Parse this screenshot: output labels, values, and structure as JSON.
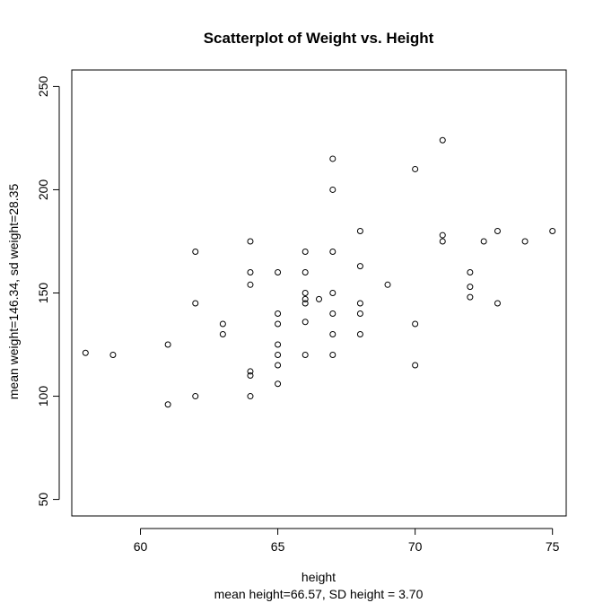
{
  "chart_data": {
    "type": "scatter",
    "title": "Scatterplot of Weight vs. Height",
    "xlabel": "height",
    "xsublabel": "mean height=66.57, SD height = 3.70",
    "ylabel": "mean weight=146.34, sd weight=28.35",
    "xlim": [
      57.5,
      75.5
    ],
    "ylim": [
      42,
      258
    ],
    "xticks": [
      "60",
      "65",
      "70",
      "75"
    ],
    "yticks": [
      "50",
      "100",
      "150",
      "200",
      "250"
    ],
    "x": [
      58,
      59,
      61,
      61,
      62,
      62,
      62,
      63,
      63,
      64,
      64,
      64,
      64,
      64,
      64,
      65,
      65,
      65,
      65,
      65,
      65,
      65,
      66,
      66,
      66,
      66,
      66,
      66,
      66,
      66.5,
      67,
      67,
      67,
      67,
      67,
      67,
      67,
      68,
      68,
      68,
      68,
      68,
      69,
      70,
      70,
      70,
      71,
      71,
      71,
      72,
      72,
      72,
      72.5,
      73,
      73,
      74,
      75
    ],
    "y": [
      121,
      120,
      125,
      96,
      170,
      145,
      100,
      135,
      130,
      175,
      160,
      154,
      112,
      110,
      100,
      160,
      140,
      135,
      125,
      115,
      106,
      120,
      170,
      160,
      150,
      145,
      136,
      120,
      147,
      147,
      200,
      170,
      150,
      140,
      130,
      120,
      215,
      180,
      145,
      140,
      130,
      163,
      154,
      135,
      115,
      210,
      178,
      175,
      224,
      160,
      148,
      153,
      175,
      145,
      180,
      175,
      180
    ],
    "grid": false,
    "legend": "none",
    "marker": "open-circle",
    "color": "#000000"
  }
}
